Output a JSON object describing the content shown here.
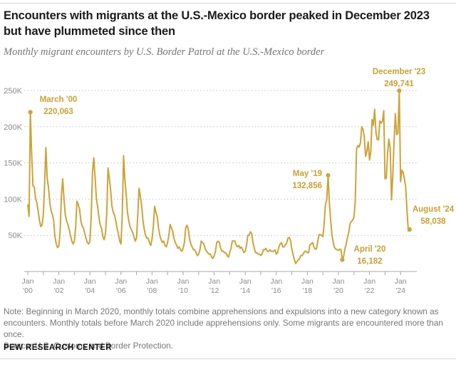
{
  "header": {
    "title_line1": "Encounters with migrants at the U.S.-Mexico border peaked in December 2023",
    "title_line2": "but have plummeted since then",
    "subtitle": "Monthly migrant encounters by U.S. Border Patrol at the U.S.-Mexico border"
  },
  "chart_data": {
    "type": "line",
    "title": "Encounters with migrants at the U.S.-Mexico border peaked in December 2023 but have plummeted since then",
    "xlabel": "",
    "ylabel": "",
    "x_frequency": "monthly",
    "x_start": "January 2000",
    "x_end": "August 2024",
    "values_unit": "thousands of encounters",
    "ylim": [
      0,
      250
    ],
    "grid": "dotted-horizontal",
    "line_color": "#cda33a",
    "values": [
      92,
      76,
      220.063,
      163,
      118,
      117,
      101,
      95,
      84,
      71,
      62,
      64,
      78,
      120,
      171,
      129,
      116,
      95,
      84,
      79,
      71,
      48,
      38,
      33,
      35,
      55,
      105,
      128,
      99,
      78,
      70,
      65,
      58,
      50,
      42,
      38,
      42,
      62,
      97,
      93,
      86,
      70,
      63,
      60,
      53,
      46,
      40,
      38,
      42,
      75,
      137,
      157,
      129,
      101,
      89,
      75,
      64,
      60,
      48,
      44,
      52,
      80,
      143,
      129,
      112,
      90,
      82,
      78,
      70,
      60,
      52,
      42,
      38,
      78,
      160,
      128,
      107,
      82,
      70,
      62,
      58,
      54,
      48,
      42,
      46,
      79,
      115,
      104,
      90,
      70,
      58,
      50,
      46,
      46,
      40,
      36,
      45,
      62,
      90,
      82,
      76,
      60,
      50,
      44,
      40,
      42,
      36,
      34,
      40,
      50,
      65,
      60,
      55,
      45,
      40,
      36,
      32,
      34,
      30,
      28,
      32,
      40,
      60,
      64,
      58,
      45,
      38,
      34,
      30,
      30,
      26,
      22,
      24,
      30,
      42,
      40,
      38,
      32,
      28,
      26,
      24,
      24,
      20,
      18,
      22,
      28,
      40,
      42,
      40,
      32,
      28,
      28,
      26,
      26,
      22,
      20,
      26,
      32,
      42,
      42,
      42,
      36,
      34,
      36,
      32,
      34,
      30,
      26,
      28,
      36,
      50,
      50,
      55,
      52,
      40,
      32,
      26,
      26,
      24,
      24,
      22,
      24,
      30,
      30,
      32,
      28,
      28,
      30,
      28,
      28,
      28,
      30,
      24,
      26,
      34,
      38,
      40,
      34,
      34,
      37,
      39,
      46,
      47,
      43,
      31,
      23,
      16,
      11,
      14,
      16,
      18,
      22,
      22,
      25,
      28,
      28,
      26,
      26,
      37,
      38,
      40,
      34,
      31,
      31,
      41,
      51,
      51,
      50,
      48,
      67,
      93,
      99,
      132.856,
      94,
      71,
      50,
      40,
      33,
      31,
      30,
      29,
      31,
      30,
      16.182,
      21,
      31,
      38,
      47,
      54,
      66,
      69,
      71,
      75,
      97,
      169,
      174,
      172,
      178,
      200,
      196,
      186,
      159,
      166,
      179,
      154,
      165,
      210,
      202,
      224,
      192,
      182,
      182,
      208,
      205,
      207,
      222,
      128,
      129,
      163,
      183,
      171,
      99,
      132,
      181,
      218,
      189,
      191,
      249.741,
      124,
      140,
      137,
      128,
      117,
      83,
      56,
      58.038
    ],
    "y_axis": {
      "ticks": [
        {
          "label": "250K",
          "value": 250
        },
        {
          "label": "200K",
          "value": 200
        },
        {
          "label": "150K",
          "value": 150
        },
        {
          "label": "100K",
          "value": 100
        },
        {
          "label": "50K",
          "value": 50
        }
      ]
    },
    "x_axis": {
      "month_label": "Jan",
      "year_labels": [
        "'00",
        "'02",
        "'04",
        "'06",
        "'08",
        "'10",
        "'12",
        "'14",
        "'16",
        "'18",
        "'20",
        "'22",
        "'24"
      ]
    },
    "annotations": [
      {
        "id": "march00",
        "index": 2,
        "date_label": "March '00",
        "value_label": "220,063"
      },
      {
        "id": "may19",
        "index": 232,
        "date_label": "May '19",
        "value_label": "132,856"
      },
      {
        "id": "april20",
        "index": 243,
        "date_label": "April '20",
        "value_label": "16,182"
      },
      {
        "id": "dec23",
        "index": 287,
        "date_label": "December '23",
        "value_label": "249,741"
      },
      {
        "id": "aug24",
        "index": 295,
        "date_label": "August '24",
        "value_label": "58,038"
      }
    ]
  },
  "footer": {
    "note_line1": "Note: Beginning in March 2020, monthly totals combine apprehensions and expulsions into a new category known as",
    "note_line2": "encounters. Monthly totals before March 2020 include apprehensions only. Some migrants are encountered more than once.",
    "source_line": "Source: U.S. Customs and Border Protection.",
    "brand": "PEW RESEARCH CENTER"
  }
}
